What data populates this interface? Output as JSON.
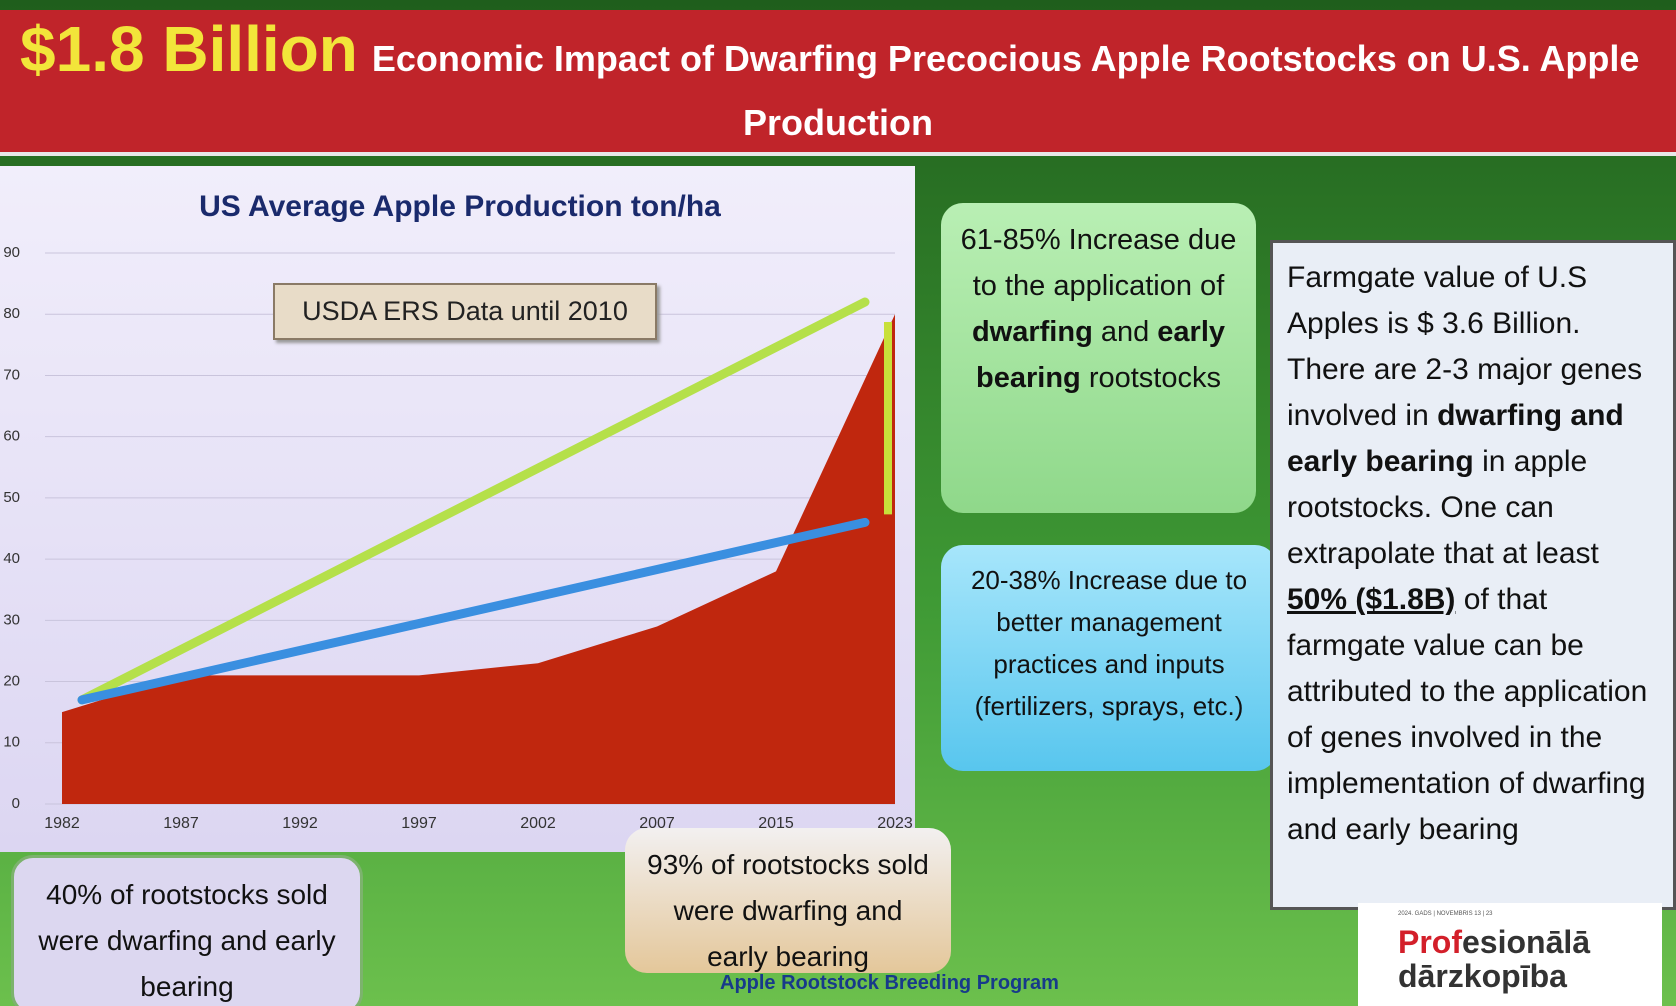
{
  "header": {
    "highlight": "$1.8 Billion",
    "title_line1": "Economic Impact of Dwarfing Precocious Apple Rootstocks on U.S. Apple",
    "title_line2": "Production"
  },
  "chart_data": {
    "type": "area",
    "title": "US Average Apple Production ton/ha",
    "note": "USDA ERS Data until 2010",
    "categories": [
      "1982",
      "1987",
      "1992",
      "1997",
      "2002",
      "2007",
      "2015",
      "2023"
    ],
    "values": [
      15,
      21,
      21,
      21,
      23,
      29,
      38,
      80
    ],
    "color": "#c0270e",
    "trend_lines": [
      {
        "color": "#b5e04a",
        "from": 17,
        "to": 82
      },
      {
        "color": "#3a8fe0",
        "from": 17,
        "to": 46
      }
    ],
    "ylim": [
      0,
      90
    ],
    "yticks": [
      0,
      10,
      20,
      30,
      40,
      50,
      60,
      70,
      80,
      90
    ],
    "grid": true
  },
  "callouts": {
    "green": [
      {
        "text": "61-85% Increase due to the application of "
      },
      {
        "text": "dwarfing",
        "style": "bold"
      },
      {
        "text": " and "
      },
      {
        "text": "early bearing",
        "style": "bold"
      },
      {
        "text": " rootstocks"
      }
    ],
    "blue": [
      {
        "text": "20-38% Increase due to better management practices and inputs (fertilizers, sprays, etc.)"
      }
    ],
    "right": [
      {
        "text": "Farmgate value of U.S Apples is $ 3.6 Billion. There are 2-3 major genes involved in "
      },
      {
        "text": "dwarfing and early bearing",
        "style": "bold"
      },
      {
        "text": " in apple rootstocks. One can extrapolate that at least "
      },
      {
        "text": "50% ($1.8B)",
        "style": "underline"
      },
      {
        "text": " of that farmgate value can be attributed to the application of genes involved in the implementation of dwarfing and early bearing"
      }
    ],
    "bottom_left": [
      {
        "text": "40% of rootstocks sold were dwarfing and early bearing"
      }
    ],
    "bottom_middle": [
      {
        "text": "93% of rootstocks sold were dwarfing and early bearing"
      }
    ]
  },
  "footer": "Apple Rootstock Breeding Program",
  "logo": {
    "small": "2024. GADS | NOVEMBRIS 13 | 23",
    "line1_red": "Prof",
    "line1": "esionālā",
    "line2": "dārzkopība"
  }
}
